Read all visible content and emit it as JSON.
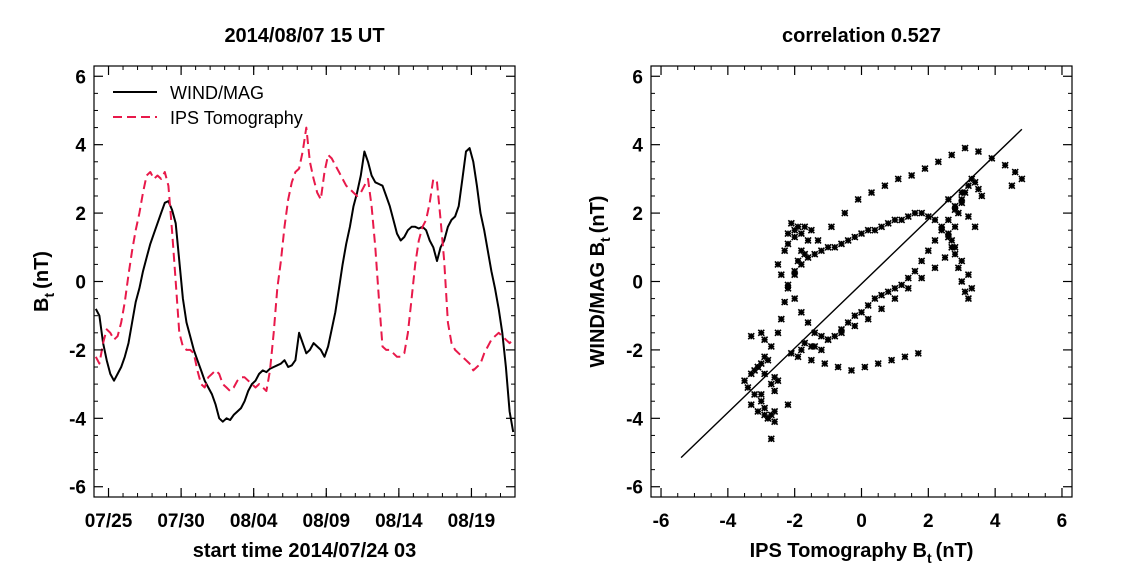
{
  "chart_data": [
    {
      "type": "line",
      "title": "2014/08/07 15 UT",
      "xlabel": "start time 2014/07/24 03",
      "ylabel": "B",
      "ylabel_sub": "t",
      "ylabel_unit": "(nT)",
      "ylim": [
        -6.3,
        6.3
      ],
      "xlim": [
        "2014-07-24",
        "2014-08-22"
      ],
      "yticks": [
        -6,
        -4,
        -2,
        0,
        2,
        4,
        6
      ],
      "xtick_labels": [
        {
          "date": "2014-07-25",
          "label": "07/25"
        },
        {
          "date": "2014-07-30",
          "label": "07/30"
        },
        {
          "date": "2014-08-04",
          "label": "08/04"
        },
        {
          "date": "2014-08-09",
          "label": "08/09"
        },
        {
          "date": "2014-08-14",
          "label": "08/14"
        },
        {
          "date": "2014-08-19",
          "label": "08/19"
        }
      ],
      "legend_position": "top-left",
      "series": [
        {
          "name": "WIND/MAG",
          "color": "#000000",
          "style": "solid",
          "x": [
            "2014-07-24T03",
            "2014-07-24T09",
            "2014-07-24T15",
            "2014-07-24T21",
            "2014-07-25T03",
            "2014-07-25T09",
            "2014-07-25T15",
            "2014-07-25T21",
            "2014-07-26T03",
            "2014-07-26T09",
            "2014-07-26T15",
            "2014-07-26T21",
            "2014-07-27T03",
            "2014-07-27T09",
            "2014-07-27T15",
            "2014-07-27T21",
            "2014-07-28T03",
            "2014-07-28T09",
            "2014-07-28T15",
            "2014-07-28T21",
            "2014-07-29T03",
            "2014-07-29T09",
            "2014-07-29T15",
            "2014-07-29T21",
            "2014-07-30T03",
            "2014-07-30T09",
            "2014-07-30T15",
            "2014-07-30T21",
            "2014-07-31T03",
            "2014-07-31T09",
            "2014-07-31T15",
            "2014-07-31T21",
            "2014-08-01T03",
            "2014-08-01T09",
            "2014-08-01T15",
            "2014-08-01T21",
            "2014-08-02T03",
            "2014-08-02T09",
            "2014-08-02T15",
            "2014-08-02T21",
            "2014-08-03T03",
            "2014-08-03T09",
            "2014-08-03T15",
            "2014-08-03T21",
            "2014-08-04T03",
            "2014-08-04T09",
            "2014-08-04T15",
            "2014-08-04T21",
            "2014-08-05T03",
            "2014-08-05T09",
            "2014-08-05T15",
            "2014-08-05T21",
            "2014-08-06T03",
            "2014-08-06T09",
            "2014-08-06T15",
            "2014-08-06T21",
            "2014-08-07T03",
            "2014-08-07T09",
            "2014-08-07T15",
            "2014-08-07T21",
            "2014-08-08T03",
            "2014-08-08T09",
            "2014-08-08T15",
            "2014-08-08T21",
            "2014-08-09T03",
            "2014-08-09T09",
            "2014-08-09T15",
            "2014-08-09T21",
            "2014-08-10T03",
            "2014-08-10T09",
            "2014-08-10T15",
            "2014-08-10T21",
            "2014-08-11T03",
            "2014-08-11T09",
            "2014-08-11T15",
            "2014-08-11T21",
            "2014-08-12T03",
            "2014-08-12T09",
            "2014-08-12T15",
            "2014-08-12T21",
            "2014-08-13T03",
            "2014-08-13T09",
            "2014-08-13T15",
            "2014-08-13T21",
            "2014-08-14T03",
            "2014-08-14T09",
            "2014-08-14T15",
            "2014-08-14T21",
            "2014-08-15T03",
            "2014-08-15T09",
            "2014-08-15T15",
            "2014-08-15T21",
            "2014-08-16T03",
            "2014-08-16T09",
            "2014-08-16T15",
            "2014-08-16T21",
            "2014-08-17T03",
            "2014-08-17T09",
            "2014-08-17T15",
            "2014-08-17T21",
            "2014-08-18T03",
            "2014-08-18T09",
            "2014-08-18T15",
            "2014-08-18T21",
            "2014-08-19T03",
            "2014-08-19T09",
            "2014-08-19T15",
            "2014-08-19T21",
            "2014-08-20T03",
            "2014-08-20T09",
            "2014-08-20T15",
            "2014-08-20T21",
            "2014-08-21T03",
            "2014-08-21T09",
            "2014-08-21T15",
            "2014-08-21T21"
          ],
          "values": [
            -0.8,
            -1.0,
            -1.8,
            -2.3,
            -2.7,
            -2.9,
            -2.7,
            -2.5,
            -2.2,
            -1.8,
            -1.2,
            -0.6,
            -0.2,
            0.3,
            0.7,
            1.1,
            1.4,
            1.7,
            2.0,
            2.3,
            2.35,
            2.1,
            1.7,
            0.6,
            -0.5,
            -1.2,
            -1.6,
            -2.0,
            -2.3,
            -2.6,
            -2.9,
            -3.1,
            -3.3,
            -3.6,
            -4.0,
            -4.1,
            -4.0,
            -4.05,
            -3.9,
            -3.8,
            -3.7,
            -3.5,
            -3.2,
            -3.0,
            -2.9,
            -2.7,
            -2.6,
            -2.65,
            -2.55,
            -2.5,
            -2.45,
            -2.4,
            -2.3,
            -2.5,
            -2.45,
            -2.3,
            -1.5,
            -1.8,
            -2.1,
            -2.0,
            -1.8,
            -1.9,
            -2.0,
            -2.2,
            -1.9,
            -1.4,
            -0.9,
            -0.2,
            0.5,
            1.1,
            1.6,
            2.2,
            2.6,
            3.1,
            3.8,
            3.5,
            3.1,
            2.9,
            2.85,
            2.8,
            2.5,
            2.2,
            1.8,
            1.4,
            1.2,
            1.3,
            1.5,
            1.6,
            1.6,
            1.55,
            1.6,
            1.5,
            1.2,
            1.0,
            0.6,
            1.0,
            1.2,
            1.6,
            1.8,
            1.9,
            2.2,
            3.0,
            3.8,
            3.9,
            3.5,
            2.8,
            2.0,
            1.5,
            0.9,
            0.3,
            -0.2,
            -0.8,
            -1.5,
            -2.5,
            -3.8,
            -4.4
          ]
        },
        {
          "name": "IPS Tomography",
          "color": "#e8194a",
          "style": "dashed",
          "x": [
            "2014-07-24T03",
            "2014-07-24T09",
            "2014-07-24T15",
            "2014-07-24T21",
            "2014-07-25T03",
            "2014-07-25T09",
            "2014-07-25T15",
            "2014-07-25T21",
            "2014-07-26T03",
            "2014-07-26T09",
            "2014-07-26T15",
            "2014-07-26T21",
            "2014-07-27T03",
            "2014-07-27T09",
            "2014-07-27T15",
            "2014-07-27T21",
            "2014-07-28T03",
            "2014-07-28T09",
            "2014-07-28T15",
            "2014-07-28T21",
            "2014-07-29T03",
            "2014-07-29T09",
            "2014-07-29T15",
            "2014-07-29T21",
            "2014-07-30T03",
            "2014-07-30T09",
            "2014-07-30T15",
            "2014-07-30T21",
            "2014-07-31T03",
            "2014-07-31T09",
            "2014-07-31T15",
            "2014-07-31T21",
            "2014-08-01T03",
            "2014-08-01T09",
            "2014-08-01T15",
            "2014-08-01T21",
            "2014-08-02T03",
            "2014-08-02T09",
            "2014-08-02T15",
            "2014-08-02T21",
            "2014-08-03T03",
            "2014-08-03T09",
            "2014-08-03T15",
            "2014-08-03T21",
            "2014-08-04T03",
            "2014-08-04T09",
            "2014-08-04T15",
            "2014-08-04T21",
            "2014-08-05T03",
            "2014-08-05T09",
            "2014-08-05T15",
            "2014-08-05T21",
            "2014-08-06T03",
            "2014-08-06T09",
            "2014-08-06T15",
            "2014-08-06T21",
            "2014-08-07T03",
            "2014-08-07T09",
            "2014-08-07T15",
            "2014-08-07T21",
            "2014-08-08T03",
            "2014-08-08T09",
            "2014-08-08T15",
            "2014-08-08T21",
            "2014-08-09T03",
            "2014-08-09T09",
            "2014-08-09T15",
            "2014-08-09T21",
            "2014-08-10T03",
            "2014-08-10T09",
            "2014-08-10T15",
            "2014-08-10T21",
            "2014-08-11T03",
            "2014-08-11T09",
            "2014-08-11T15",
            "2014-08-11T21",
            "2014-08-12T03",
            "2014-08-12T09",
            "2014-08-12T15",
            "2014-08-12T21",
            "2014-08-13T03",
            "2014-08-13T09",
            "2014-08-13T15",
            "2014-08-13T21",
            "2014-08-14T03",
            "2014-08-14T09",
            "2014-08-14T15",
            "2014-08-14T21",
            "2014-08-15T03",
            "2014-08-15T09",
            "2014-08-15T15",
            "2014-08-15T21",
            "2014-08-16T03",
            "2014-08-16T09",
            "2014-08-16T15",
            "2014-08-16T21",
            "2014-08-17T03",
            "2014-08-17T09",
            "2014-08-17T15",
            "2014-08-17T21",
            "2014-08-18T03",
            "2014-08-18T09",
            "2014-08-18T15",
            "2014-08-18T21",
            "2014-08-19T03",
            "2014-08-19T09",
            "2014-08-19T15",
            "2014-08-19T21",
            "2014-08-20T03",
            "2014-08-20T09",
            "2014-08-20T15",
            "2014-08-20T21",
            "2014-08-21T03",
            "2014-08-21T09",
            "2014-08-21T15",
            "2014-08-21T21"
          ],
          "values": [
            -2.2,
            -2.4,
            -1.8,
            -1.4,
            -1.5,
            -1.7,
            -1.6,
            -1.2,
            -0.6,
            0.2,
            0.9,
            1.5,
            2.0,
            2.6,
            3.1,
            3.2,
            3.0,
            3.1,
            3.0,
            3.2,
            2.8,
            1.5,
            0.0,
            -1.5,
            -1.9,
            -2.0,
            -2.0,
            -2.1,
            -2.6,
            -3.0,
            -3.1,
            -2.8,
            -2.7,
            -2.6,
            -2.7,
            -3.0,
            -3.1,
            -3.2,
            -3.1,
            -2.9,
            -2.8,
            -2.8,
            -2.9,
            -3.0,
            -3.1,
            -3.0,
            -3.1,
            -3.2,
            -2.6,
            -1.5,
            -0.2,
            0.6,
            1.6,
            2.4,
            2.9,
            3.2,
            3.3,
            3.8,
            4.5,
            3.5,
            3.0,
            2.6,
            2.4,
            3.2,
            3.7,
            3.6,
            3.4,
            3.2,
            3.0,
            2.8,
            2.7,
            2.6,
            2.5,
            2.6,
            2.8,
            3.0,
            2.2,
            1.0,
            -0.5,
            -1.9,
            -2.0,
            -2.0,
            -2.1,
            -2.2,
            -2.2,
            -2.1,
            -1.5,
            -0.5,
            0.5,
            1.2,
            1.6,
            1.8,
            2.3,
            3.0,
            2.9,
            1.8,
            0.6,
            -1.2,
            -1.8,
            -2.0,
            -2.1,
            -2.2,
            -2.3,
            -2.4,
            -2.6,
            -2.5,
            -2.4,
            -2.1,
            -1.9,
            -1.7,
            -1.6,
            -1.5,
            -1.6,
            -1.7,
            -1.8,
            -1.7
          ]
        }
      ]
    },
    {
      "type": "scatter",
      "title": "correlation 0.527",
      "xlabel": "IPS Tomography B",
      "xlabel_sub": "t",
      "xlabel_unit": "(nT)",
      "ylabel": "WIND/MAG B",
      "ylabel_sub": "t",
      "ylabel_unit": "(nT)",
      "xlim": [
        -6.3,
        6.3
      ],
      "ylim": [
        -6.3,
        6.3
      ],
      "xticks": [
        -6,
        -4,
        -2,
        0,
        2,
        4,
        6
      ],
      "yticks": [
        -6,
        -4,
        -2,
        0,
        2,
        4,
        6
      ],
      "marker_color": "#000000",
      "fit_line": {
        "x": [
          -5.4,
          4.8
        ],
        "y": [
          -5.15,
          4.45
        ]
      },
      "points_x": [
        -3.1,
        -3.2,
        -3.0,
        -2.8,
        -2.9,
        -2.6,
        -2.7,
        -2.5,
        -3.0,
        -3.3,
        -3.1,
        -2.9,
        -2.8,
        -2.7,
        -2.6,
        -2.6,
        -2.8,
        -2.9,
        -3.0,
        -3.2,
        -3.4,
        -3.5,
        -3.3,
        -3.1,
        -2.9,
        -2.7,
        -2.5,
        -2.4,
        -2.3,
        -2.2,
        -2.0,
        -1.9,
        -1.8,
        -1.6,
        -1.5,
        -1.7,
        -2.0,
        -2.2,
        -2.1,
        -1.9,
        -1.8,
        -2.0,
        -2.2,
        -2.3,
        -2.5,
        -2.4,
        -2.2,
        -2.0,
        -1.8,
        -1.6,
        -1.4,
        -1.2,
        -1.0,
        -0.8,
        -0.6,
        -0.4,
        -0.2,
        0.0,
        0.2,
        0.4,
        0.6,
        0.8,
        1.0,
        1.2,
        1.4,
        1.6,
        1.8,
        2.0,
        2.2,
        2.4,
        2.6,
        2.8,
        3.0,
        3.1,
        3.2,
        3.3,
        3.4,
        3.5,
        3.6,
        3.0,
        2.9,
        2.8,
        2.7,
        2.8,
        2.9,
        3.0,
        3.1,
        3.2,
        3.3,
        3.2,
        3.0,
        2.8,
        2.6,
        2.4,
        2.2,
        2.0,
        1.8,
        1.6,
        1.4,
        1.2,
        1.0,
        0.8,
        0.6,
        0.4,
        0.2,
        0.0,
        -0.2,
        -0.4,
        -0.6,
        -0.8,
        -1.0,
        -1.2,
        -1.4,
        -1.6,
        -1.8,
        -2.0,
        -1.7,
        -1.3,
        -0.9,
        -0.5,
        -0.1,
        0.3,
        0.7,
        1.1,
        1.5,
        1.9,
        2.3,
        2.7,
        3.1,
        3.5,
        3.9,
        4.3,
        4.6,
        4.8,
        4.5,
        3.0,
        2.6,
        2.8,
        3.2,
        3.4,
        2.6,
        2.7,
        2.5,
        2.2,
        1.8,
        1.4,
        1.0,
        0.6,
        0.2,
        -0.2,
        -0.6,
        -1.0,
        -1.4,
        -1.8,
        -2.1,
        -1.9,
        -1.5,
        -1.1,
        -0.7,
        -0.3,
        0.1,
        0.5,
        0.9,
        1.3,
        1.7,
        -1.2,
        -1.5,
        -1.7,
        -2.9,
        -3.3,
        -2.7,
        -2.2,
        -3.0,
        -2.6
      ],
      "points_y": [
        -2.5,
        -2.6,
        -2.4,
        -2.3,
        -2.7,
        -2.8,
        -3.0,
        -2.9,
        -3.3,
        -3.6,
        -3.8,
        -3.9,
        -4.0,
        -3.9,
        -3.8,
        -4.1,
        -4.0,
        -3.7,
        -3.5,
        -3.3,
        -3.1,
        -2.9,
        -2.7,
        -2.5,
        -2.2,
        -1.9,
        -1.5,
        -1.1,
        -0.6,
        -0.2,
        0.2,
        0.6,
        0.9,
        1.2,
        1.5,
        1.6,
        1.5,
        1.4,
        1.7,
        1.6,
        1.4,
        1.3,
        1.1,
        0.9,
        0.5,
        0.2,
        -0.1,
        -0.5,
        -0.9,
        -1.2,
        -1.5,
        -1.6,
        -1.7,
        -1.6,
        -1.4,
        -1.2,
        -1.0,
        -0.9,
        -0.7,
        -0.5,
        -0.4,
        -0.3,
        -0.2,
        -0.1,
        0.1,
        0.3,
        0.6,
        0.9,
        1.2,
        1.5,
        1.8,
        2.1,
        2.4,
        2.6,
        2.8,
        3.0,
        2.9,
        2.7,
        2.5,
        2.3,
        2.0,
        1.6,
        1.2,
        0.8,
        0.4,
        0.0,
        -0.3,
        -0.5,
        -0.2,
        0.2,
        0.6,
        1.0,
        1.4,
        1.6,
        1.8,
        1.9,
        2.0,
        2.0,
        1.9,
        1.8,
        1.8,
        1.7,
        1.6,
        1.5,
        1.5,
        1.4,
        1.3,
        1.2,
        1.1,
        1.0,
        1.0,
        0.9,
        0.8,
        0.7,
        0.5,
        0.3,
        0.8,
        1.2,
        1.6,
        2.0,
        2.4,
        2.6,
        2.8,
        3.0,
        3.1,
        3.3,
        3.5,
        3.7,
        3.9,
        3.8,
        3.6,
        3.4,
        3.2,
        3.0,
        2.8,
        2.6,
        2.4,
        2.2,
        1.9,
        1.6,
        1.3,
        1.0,
        0.7,
        0.4,
        0.1,
        -0.2,
        -0.5,
        -0.8,
        -1.1,
        -1.3,
        -1.5,
        -1.7,
        -1.9,
        -2.0,
        -2.1,
        -2.2,
        -2.3,
        -2.4,
        -2.5,
        -2.6,
        -2.5,
        -2.4,
        -2.3,
        -2.2,
        -2.1,
        -2.0,
        -1.9,
        -1.8,
        -1.7,
        -1.6,
        -4.6,
        -3.6,
        -1.5,
        -3.2,
        -3.5,
        -2.1,
        -2.3,
        -3.9,
        -2.4
      ]
    }
  ],
  "legend_labels": {
    "wind": "WIND/MAG",
    "ips": "IPS Tomography"
  }
}
